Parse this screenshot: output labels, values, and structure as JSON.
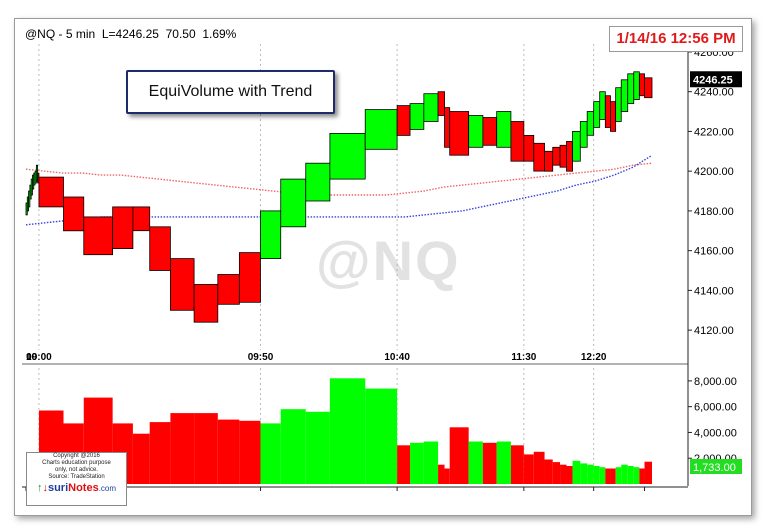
{
  "header": {
    "symbol": "@NQ",
    "interval": "5 min",
    "last": "L=4246.25",
    "change": "70.50",
    "change_pct": "1.69%"
  },
  "date_badge": "1/14/16 12:56 PM",
  "annotation": "EquiVolume with Trend",
  "watermark": "@NQ",
  "copyright": {
    "lines": [
      "Copyright @2016",
      "Charts education purpose",
      "only, not advice.",
      "Source: TradeStation"
    ],
    "logo_prefix": "suri",
    "logo_brand": "Notes",
    "logo_suffix": ".com"
  },
  "colors": {
    "up": "#00ff00",
    "down": "#ff0000",
    "ma_red": "#ee6666",
    "ma_blue": "#3344dd",
    "badge_text": "#e0191b"
  },
  "chart_data": [
    {
      "type": "equivolume",
      "ylim": [
        4110,
        4265
      ],
      "yticks": [
        4120,
        4140,
        4160,
        4180,
        4200,
        4220,
        4240,
        4260
      ],
      "ytick_labels": [
        "4120.00",
        "4140.00",
        "4160.00",
        "4180.00",
        "4200.00",
        "4220.00",
        "4240.00",
        "4260.00"
      ],
      "x_labels": [
        "10",
        "09:00",
        "09:50",
        "10:40",
        "11:30",
        "12:20"
      ],
      "last_price_label": "4246.25",
      "boxes": [
        {
          "vol": 300,
          "low": 4178,
          "high": 4184,
          "dir": "up"
        },
        {
          "vol": 300,
          "low": 4180,
          "high": 4187,
          "dir": "up"
        },
        {
          "vol": 300,
          "low": 4182,
          "high": 4190,
          "dir": "up"
        },
        {
          "vol": 300,
          "low": 4186,
          "high": 4193,
          "dir": "up"
        },
        {
          "vol": 300,
          "low": 4188,
          "high": 4196,
          "dir": "up"
        },
        {
          "vol": 300,
          "low": 4191,
          "high": 4198,
          "dir": "up"
        },
        {
          "vol": 300,
          "low": 4193,
          "high": 4199,
          "dir": "up"
        },
        {
          "vol": 300,
          "low": 4194,
          "high": 4200,
          "dir": "up"
        },
        {
          "vol": 300,
          "low": 4195,
          "high": 4203,
          "dir": "up"
        },
        {
          "vol": 300,
          "low": 4194,
          "high": 4199,
          "dir": "down"
        },
        {
          "vol": 5700,
          "low": 4182,
          "high": 4197,
          "dir": "down"
        },
        {
          "vol": 4700,
          "low": 4170,
          "high": 4187,
          "dir": "down"
        },
        {
          "vol": 6700,
          "low": 4158,
          "high": 4177,
          "dir": "down"
        },
        {
          "vol": 4700,
          "low": 4161,
          "high": 4182,
          "dir": "down"
        },
        {
          "vol": 3900,
          "low": 4170,
          "high": 4182,
          "dir": "down"
        },
        {
          "vol": 4800,
          "low": 4150,
          "high": 4172,
          "dir": "down"
        },
        {
          "vol": 5500,
          "low": 4130,
          "high": 4156,
          "dir": "down"
        },
        {
          "vol": 5500,
          "low": 4124,
          "high": 4143,
          "dir": "down"
        },
        {
          "vol": 5000,
          "low": 4133,
          "high": 4148,
          "dir": "down"
        },
        {
          "vol": 4900,
          "low": 4134,
          "high": 4159,
          "dir": "down"
        },
        {
          "vol": 4700,
          "low": 4156,
          "high": 4180,
          "dir": "up"
        },
        {
          "vol": 5800,
          "low": 4172,
          "high": 4196,
          "dir": "up"
        },
        {
          "vol": 5600,
          "low": 4185,
          "high": 4204,
          "dir": "up"
        },
        {
          "vol": 8200,
          "low": 4196,
          "high": 4219,
          "dir": "up"
        },
        {
          "vol": 7400,
          "low": 4211,
          "high": 4231,
          "dir": "up"
        },
        {
          "vol": 3000,
          "low": 4218,
          "high": 4233,
          "dir": "down"
        },
        {
          "vol": 3200,
          "low": 4221,
          "high": 4234,
          "dir": "up"
        },
        {
          "vol": 3300,
          "low": 4225,
          "high": 4239,
          "dir": "up"
        },
        {
          "vol": 1500,
          "low": 4228,
          "high": 4240,
          "dir": "down"
        },
        {
          "vol": 1200,
          "low": 4212,
          "high": 4232,
          "dir": "down"
        },
        {
          "vol": 4400,
          "low": 4208,
          "high": 4230,
          "dir": "down"
        },
        {
          "vol": 3300,
          "low": 4212,
          "high": 4228,
          "dir": "up"
        },
        {
          "vol": 3200,
          "low": 4213,
          "high": 4227,
          "dir": "down"
        },
        {
          "vol": 3300,
          "low": 4212,
          "high": 4230,
          "dir": "up"
        },
        {
          "vol": 3000,
          "low": 4205,
          "high": 4225,
          "dir": "down"
        },
        {
          "vol": 2300,
          "low": 4205,
          "high": 4218,
          "dir": "down"
        },
        {
          "vol": 2500,
          "low": 4200,
          "high": 4214,
          "dir": "down"
        },
        {
          "vol": 1900,
          "low": 4200,
          "high": 4210,
          "dir": "down"
        },
        {
          "vol": 1700,
          "low": 4203,
          "high": 4212,
          "dir": "down"
        },
        {
          "vol": 1500,
          "low": 4202,
          "high": 4213,
          "dir": "down"
        },
        {
          "vol": 1400,
          "low": 4200,
          "high": 4215,
          "dir": "down"
        },
        {
          "vol": 1800,
          "low": 4205,
          "high": 4220,
          "dir": "up"
        },
        {
          "vol": 1600,
          "low": 4212,
          "high": 4225,
          "dir": "up"
        },
        {
          "vol": 1500,
          "low": 4218,
          "high": 4230,
          "dir": "up"
        },
        {
          "vol": 1400,
          "low": 4222,
          "high": 4235,
          "dir": "up"
        },
        {
          "vol": 1300,
          "low": 4226,
          "high": 4240,
          "dir": "up"
        },
        {
          "vol": 1200,
          "low": 4222,
          "high": 4238,
          "dir": "down"
        },
        {
          "vol": 1200,
          "low": 4220,
          "high": 4235,
          "dir": "down"
        },
        {
          "vol": 1300,
          "low": 4225,
          "high": 4242,
          "dir": "up"
        },
        {
          "vol": 1500,
          "low": 4230,
          "high": 4246,
          "dir": "up"
        },
        {
          "vol": 1400,
          "low": 4234,
          "high": 4249,
          "dir": "up"
        },
        {
          "vol": 1300,
          "low": 4236,
          "high": 4250,
          "dir": "up"
        },
        {
          "vol": 1200,
          "low": 4238,
          "high": 4249,
          "dir": "down"
        },
        {
          "vol": 1733,
          "low": 4237,
          "high": 4247,
          "dir": "down"
        }
      ],
      "series": [
        {
          "name": "",
          "color": "#ee6666",
          "values": [
            4201,
            4200,
            4199,
            4199,
            4198,
            4198,
            4197,
            4196,
            4195,
            4194,
            4193,
            4192,
            4191,
            4190,
            4189,
            4188,
            4188,
            4188,
            4188,
            4188,
            4189,
            4190,
            4192,
            4193,
            4194,
            4195,
            4196,
            4197,
            4198,
            4199,
            4200,
            4201,
            4203,
            4204
          ]
        },
        {
          "name": "",
          "color": "#3344dd",
          "values": [
            4173,
            4174,
            4175,
            4176,
            4177,
            4177,
            4177,
            4177,
            4177,
            4177,
            4177,
            4177,
            4177,
            4177,
            4177,
            4177,
            4177,
            4177,
            4177,
            4177,
            4177,
            4178,
            4179,
            4180,
            4182,
            4184,
            4186,
            4188,
            4190,
            4193,
            4195,
            4198,
            4202,
            4208
          ]
        }
      ]
    },
    {
      "type": "bar",
      "title": "",
      "ylim": [
        0,
        9000
      ],
      "yticks": [
        2000,
        4000,
        6000,
        8000
      ],
      "ytick_labels": [
        "2,000.00",
        "4,000.00",
        "6,000.00",
        "8,000.00"
      ],
      "last_value_label": "1,733.00"
    }
  ]
}
